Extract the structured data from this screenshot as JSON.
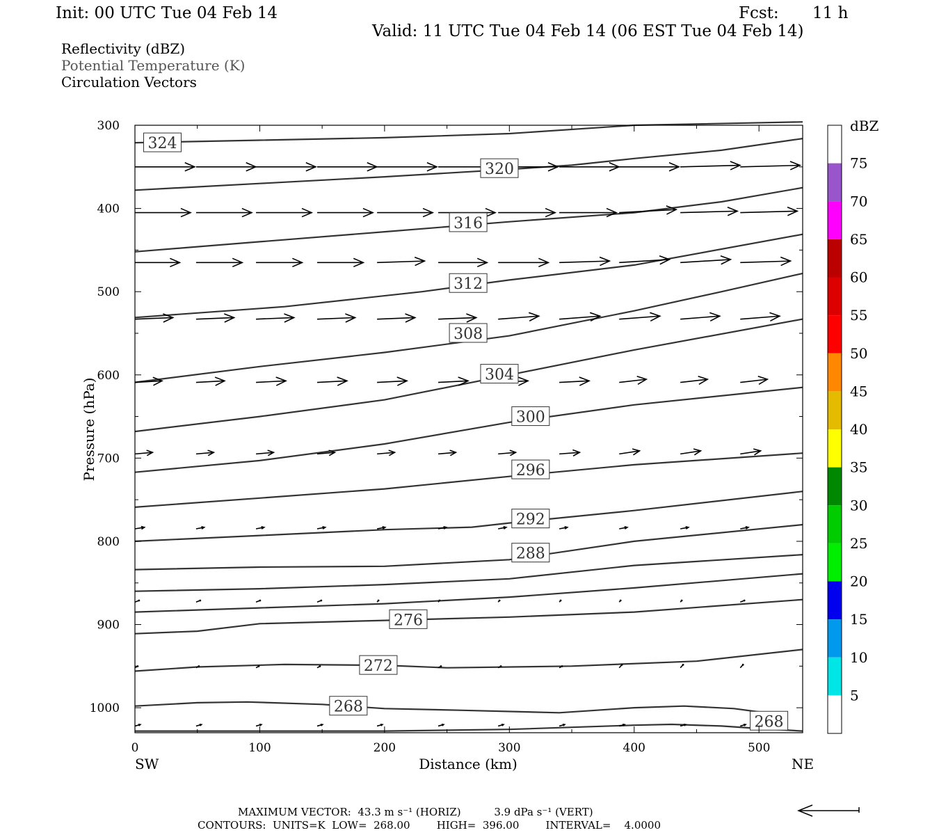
{
  "header": {
    "init": "Init: 00 UTC Tue 04 Feb 14",
    "fcst_label": "Fcst:",
    "fcst_value": "11 h",
    "valid": "Valid: 11 UTC Tue 04 Feb 14 (06 EST Tue 04 Feb 14)"
  },
  "fields": {
    "line1": "Reflectivity (dBZ)",
    "line2": "Potential Temperature (K)",
    "line3": "Circulation Vectors"
  },
  "footer": {
    "max_vector": "MAXIMUM VECTOR:  43.3 m s⁻¹ (HORIZ)          3.9 dPa s⁻¹ (VERT)",
    "contours": "CONTOURS:  UNITS=K  LOW=  268.00        HIGH=  396.00        INTERVAL=    4.0000"
  },
  "colors": {
    "contour": "#333333",
    "vector": "#000000",
    "frame": "#000000"
  },
  "chart_data": {
    "type": "line",
    "xlabel": "Distance (km)",
    "ylabel": "Pressure (hPa)",
    "xlim": [
      0,
      535
    ],
    "ylim": [
      1030,
      300
    ],
    "x_ticks": [
      "0",
      "100",
      "200",
      "300",
      "400",
      "500"
    ],
    "y_ticks": [
      "300",
      "400",
      "500",
      "600",
      "700",
      "800",
      "900",
      "1000"
    ],
    "x_left_label": "SW",
    "x_right_label": "NE",
    "contours": [
      {
        "value": 324,
        "label": "324",
        "label_at": [
          22,
          321
        ],
        "points": [
          [
            0,
            321
          ],
          [
            100,
            318
          ],
          [
            200,
            315
          ],
          [
            300,
            310
          ],
          [
            400,
            300
          ],
          [
            535,
            296
          ]
        ]
      },
      {
        "value": 320,
        "label": "320",
        "label_at": [
          292,
          352
        ],
        "points": [
          [
            0,
            378
          ],
          [
            100,
            370
          ],
          [
            200,
            362
          ],
          [
            300,
            353
          ],
          [
            350,
            348
          ],
          [
            400,
            340
          ],
          [
            470,
            330
          ],
          [
            535,
            316
          ]
        ]
      },
      {
        "value": 316,
        "label": "316",
        "label_at": [
          267,
          417
        ],
        "points": [
          [
            0,
            452
          ],
          [
            100,
            440
          ],
          [
            200,
            428
          ],
          [
            300,
            416
          ],
          [
            400,
            405
          ],
          [
            470,
            392
          ],
          [
            535,
            375
          ]
        ]
      },
      {
        "value": 312,
        "label": "312",
        "label_at": [
          267,
          490
        ],
        "points": [
          [
            0,
            531
          ],
          [
            120,
            518
          ],
          [
            230,
            500
          ],
          [
            300,
            486
          ],
          [
            400,
            468
          ],
          [
            535,
            431
          ]
        ]
      },
      {
        "value": 308,
        "label": "308",
        "label_at": [
          267,
          550
        ],
        "points": [
          [
            0,
            609
          ],
          [
            100,
            590
          ],
          [
            200,
            573
          ],
          [
            300,
            553
          ],
          [
            400,
            523
          ],
          [
            470,
            500
          ],
          [
            535,
            478
          ]
        ]
      },
      {
        "value": 304,
        "label": "304",
        "label_at": [
          292,
          599
        ],
        "points": [
          [
            0,
            668
          ],
          [
            100,
            650
          ],
          [
            200,
            630
          ],
          [
            300,
            600
          ],
          [
            400,
            570
          ],
          [
            535,
            533
          ]
        ]
      },
      {
        "value": 300,
        "label": "300",
        "label_at": [
          317,
          650
        ],
        "points": [
          [
            0,
            717
          ],
          [
            100,
            703
          ],
          [
            200,
            683
          ],
          [
            300,
            657
          ],
          [
            400,
            636
          ],
          [
            535,
            615
          ]
        ]
      },
      {
        "value": 296,
        "label": "296",
        "label_at": [
          317,
          714
        ],
        "points": [
          [
            0,
            759
          ],
          [
            100,
            748
          ],
          [
            200,
            737
          ],
          [
            300,
            722
          ],
          [
            400,
            708
          ],
          [
            535,
            694
          ]
        ]
      },
      {
        "value": 292,
        "label": "292",
        "label_at": [
          317,
          773
        ],
        "points": [
          [
            0,
            800
          ],
          [
            100,
            793
          ],
          [
            200,
            786
          ],
          [
            270,
            783
          ],
          [
            300,
            778
          ],
          [
            400,
            763
          ],
          [
            535,
            740
          ]
        ]
      },
      {
        "value": 288,
        "label": "288",
        "label_at": [
          317,
          814
        ],
        "points": [
          [
            0,
            834
          ],
          [
            100,
            831
          ],
          [
            200,
            830
          ],
          [
            300,
            822
          ],
          [
            400,
            800
          ],
          [
            535,
            780
          ]
        ]
      },
      {
        "value": 284,
        "label": "",
        "label_at": null,
        "points": [
          [
            0,
            860
          ],
          [
            100,
            857
          ],
          [
            200,
            852
          ],
          [
            300,
            845
          ],
          [
            400,
            829
          ],
          [
            535,
            816
          ]
        ]
      },
      {
        "value": 280,
        "label": "",
        "label_at": null,
        "points": [
          [
            0,
            885
          ],
          [
            100,
            880
          ],
          [
            200,
            875
          ],
          [
            300,
            867
          ],
          [
            400,
            856
          ],
          [
            535,
            839
          ]
        ]
      },
      {
        "value": 276,
        "label": "276",
        "label_at": [
          219,
          894
        ],
        "points": [
          [
            0,
            911
          ],
          [
            50,
            908
          ],
          [
            100,
            899
          ],
          [
            200,
            895
          ],
          [
            300,
            891
          ],
          [
            400,
            885
          ],
          [
            535,
            870
          ]
        ]
      },
      {
        "value": 272,
        "label": "272",
        "label_at": [
          195,
          949
        ],
        "points": [
          [
            0,
            956
          ],
          [
            50,
            951
          ],
          [
            120,
            948
          ],
          [
            200,
            949
          ],
          [
            250,
            952
          ],
          [
            350,
            950
          ],
          [
            450,
            944
          ],
          [
            535,
            930
          ]
        ]
      },
      {
        "value": 268,
        "label": "268",
        "label_at": [
          171,
          998
        ],
        "points": [
          [
            0,
            998
          ],
          [
            50,
            994
          ],
          [
            90,
            993
          ],
          [
            150,
            996
          ],
          [
            200,
            1001
          ],
          [
            260,
            1003
          ],
          [
            340,
            1006
          ],
          [
            400,
            1000
          ],
          [
            440,
            998
          ],
          [
            480,
            1001
          ],
          [
            500,
            1005
          ],
          [
            520,
            1014
          ]
        ]
      },
      {
        "value": 268,
        "label": "268",
        "label_at": [
          508,
          1016
        ],
        "points": [
          [
            0,
            1028
          ],
          [
            100,
            1028
          ],
          [
            200,
            1028
          ],
          [
            300,
            1026
          ],
          [
            400,
            1021
          ],
          [
            430,
            1020
          ],
          [
            470,
            1022
          ],
          [
            500,
            1025
          ],
          [
            535,
            1028
          ]
        ]
      }
    ],
    "vectors": {
      "x": [
        0,
        49,
        97,
        146,
        194,
        243,
        291,
        340,
        388,
        437,
        485
      ],
      "rows": [
        {
          "p": 350,
          "u": [
            44,
            44,
            44,
            44,
            44,
            44,
            44,
            44,
            44,
            44,
            44
          ],
          "w": [
            0,
            0,
            0,
            0,
            0,
            0,
            0,
            0,
            0,
            1,
            1
          ]
        },
        {
          "p": 405,
          "u": [
            41,
            41,
            41,
            41,
            41,
            42,
            42,
            42,
            42,
            42,
            42
          ],
          "w": [
            0,
            0,
            0,
            0,
            0,
            0,
            0,
            0,
            2,
            1,
            1
          ]
        },
        {
          "p": 465,
          "u": [
            33,
            34,
            34,
            34,
            35,
            36,
            37,
            37,
            37,
            37,
            37
          ],
          "w": [
            0,
            0,
            0,
            0,
            1,
            0,
            0,
            1,
            2,
            2,
            1
          ]
        },
        {
          "p": 533,
          "u": [
            28,
            28,
            28,
            28,
            28,
            28,
            30,
            30,
            30,
            29,
            29
          ],
          "w": [
            1,
            1,
            1,
            1,
            1,
            1,
            2,
            2,
            2,
            2,
            2
          ]
        },
        {
          "p": 609,
          "u": [
            20,
            21,
            22,
            22,
            22,
            22,
            22,
            22,
            20,
            20,
            20
          ],
          "w": [
            1,
            1,
            1,
            1,
            1,
            1,
            1,
            1,
            2,
            2,
            2
          ]
        },
        {
          "p": 695,
          "u": [
            13,
            13,
            13,
            13,
            13,
            13,
            13,
            15,
            15,
            15,
            15
          ],
          "w": [
            1,
            1,
            1,
            1,
            1,
            1,
            1,
            1,
            2,
            2,
            2
          ]
        },
        {
          "p": 785,
          "u": [
            7,
            6,
            6,
            6,
            6,
            6,
            6,
            6,
            6,
            6,
            6
          ],
          "w": [
            1,
            1,
            1,
            1,
            1,
            1,
            1,
            1,
            1,
            1,
            1
          ]
        },
        {
          "p": 873,
          "u": [
            3,
            3,
            3,
            3,
            1,
            1,
            1,
            1,
            1,
            1,
            3
          ],
          "w": [
            1,
            1,
            1,
            1,
            1,
            1,
            1,
            1,
            1,
            1,
            1
          ]
        },
        {
          "p": 952,
          "u": [
            2,
            2,
            2,
            2,
            2,
            2,
            2,
            2,
            2,
            2,
            2
          ],
          "w": [
            1,
            1,
            1,
            1,
            1,
            1,
            1,
            1,
            2,
            2,
            2
          ]
        },
        {
          "p": 1022,
          "u": [
            4,
            4,
            4,
            4,
            4,
            4,
            4,
            4,
            4,
            4,
            4
          ],
          "w": [
            1,
            1,
            1,
            1,
            1,
            1,
            1,
            1,
            1,
            1,
            1
          ]
        }
      ]
    },
    "colorbar": {
      "title": "dBZ",
      "levels": [
        "5",
        "10",
        "15",
        "20",
        "25",
        "30",
        "35",
        "40",
        "45",
        "50",
        "55",
        "60",
        "65",
        "70",
        "75"
      ],
      "colors": [
        "#ffffff",
        "#00e5e5",
        "#0099ee",
        "#0000ee",
        "#00ee00",
        "#00cc00",
        "#008800",
        "#ffff00",
        "#e5bb00",
        "#ff8800",
        "#ff0000",
        "#dd0000",
        "#bb0000",
        "#ff00ff",
        "#9955cc",
        "#ffffff"
      ]
    }
  }
}
